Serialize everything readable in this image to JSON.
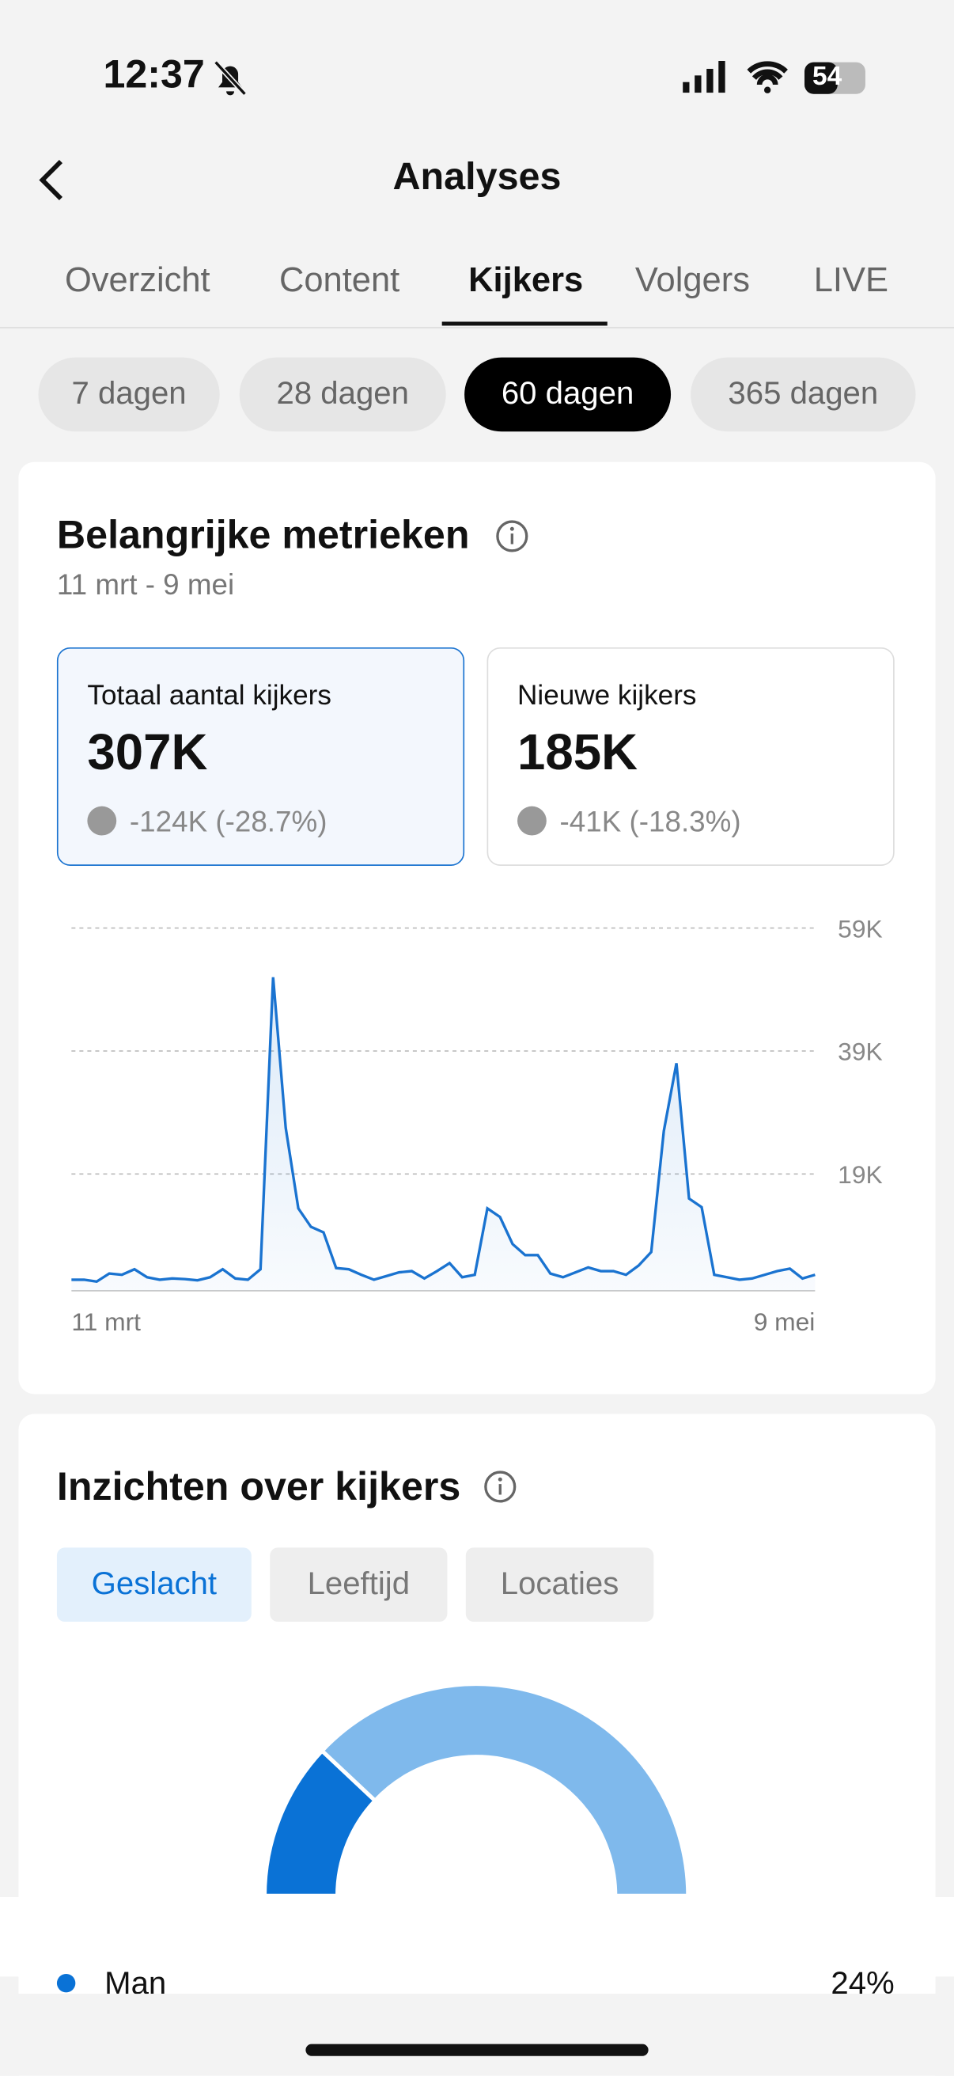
{
  "status": {
    "time": "12:37",
    "battery": "54"
  },
  "header": {
    "title": "Analyses"
  },
  "tabs": [
    "Overzicht",
    "Content",
    "Kijkers",
    "Volgers",
    "LIVE"
  ],
  "periods": [
    "7 dagen",
    "28 dagen",
    "60 dagen",
    "365 dagen"
  ],
  "metrics": {
    "title": "Belangrijke metrieken",
    "date_range": "11 mrt - 9 mei",
    "cards": [
      {
        "label": "Totaal aantal kijkers",
        "value": "307K",
        "delta": "-124K (-28.7%)"
      },
      {
        "label": "Nieuwe kijkers",
        "value": "185K",
        "delta": "-41K (-18.3%)"
      }
    ]
  },
  "chart_data": [
    {
      "type": "line",
      "color": "#1a73d0",
      "categories": [
        "11 mrt",
        null,
        null,
        null,
        null,
        null,
        null,
        null,
        null,
        null,
        null,
        null,
        null,
        null,
        null,
        null,
        null,
        null,
        null,
        null,
        null,
        null,
        null,
        null,
        null,
        null,
        null,
        null,
        null,
        null,
        null,
        null,
        null,
        null,
        null,
        null,
        null,
        null,
        null,
        null,
        null,
        null,
        null,
        null,
        null,
        null,
        null,
        null,
        null,
        null,
        null,
        null,
        null,
        null,
        null,
        null,
        null,
        null,
        null,
        "9 mei"
      ],
      "values": [
        1.8,
        1.8,
        1.5,
        2.8,
        2.6,
        3.5,
        2.2,
        1.8,
        2,
        1.9,
        1.7,
        2.2,
        3.5,
        2,
        1.8,
        3.5,
        51,
        26.5,
        13.4,
        10.4,
        9.5,
        3.7,
        3.5,
        2.6,
        1.8,
        2.4,
        3,
        3.2,
        2,
        3.2,
        4.5,
        2.2,
        2.6,
        13.4,
        12,
        7.6,
        5.8,
        5.8,
        2.8,
        2.2,
        3,
        3.8,
        3.2,
        3.2,
        2.6,
        4.1,
        6.3,
        26,
        37,
        15,
        13.6,
        2.6,
        2.2,
        1.8,
        2,
        2.6,
        3.2,
        3.6,
        2,
        2.6
      ],
      "ylim": [
        0,
        59
      ],
      "yticks": [
        {
          "value": 19,
          "label": "19K"
        },
        {
          "value": 39,
          "label": "39K"
        },
        {
          "value": 59,
          "label": "59K"
        }
      ],
      "grid": true
    },
    {
      "type": "pie",
      "title": "Inzichten over kijkers",
      "tabs": [
        "Geslacht",
        "Leeftijd",
        "Locaties"
      ],
      "categories": [
        "Man",
        null
      ],
      "values": [
        24,
        76
      ],
      "value_labels": [
        "24%",
        null
      ],
      "colors": [
        "#0a72d6",
        "#7fb9ec"
      ]
    }
  ]
}
